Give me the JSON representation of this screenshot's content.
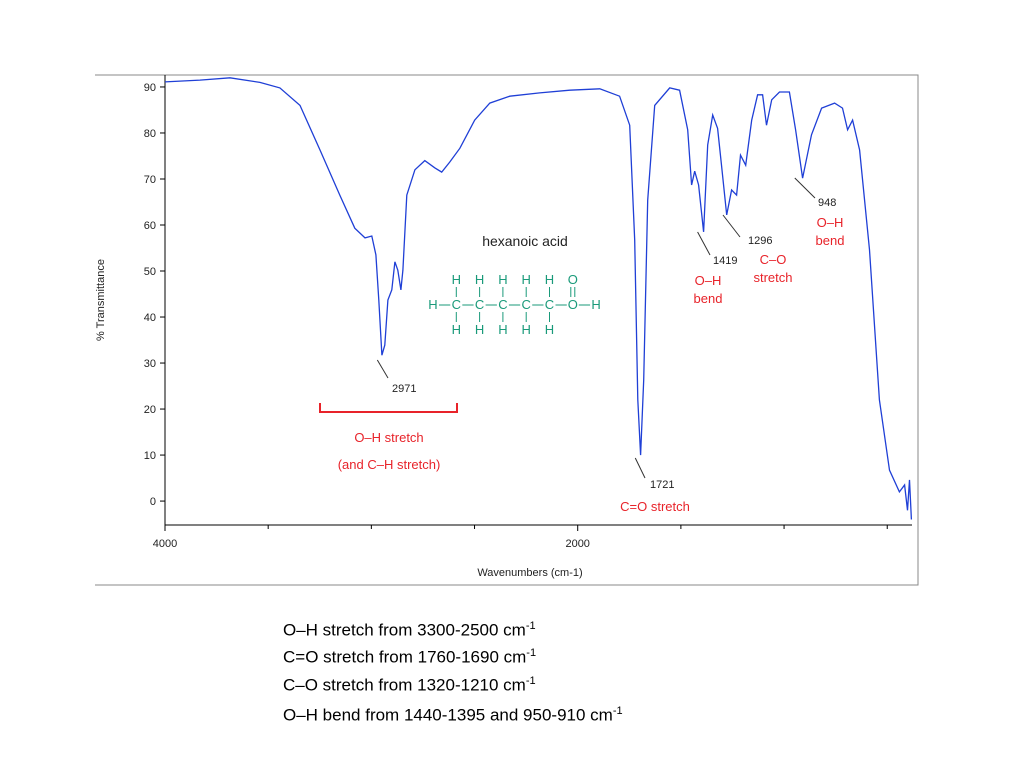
{
  "chart_data": {
    "type": "line",
    "ylabel": "% Transmittance",
    "xlabel": "Wavenumbers (cm-1)",
    "x": [
      4000,
      3831,
      3685,
      3540,
      3443,
      3346,
      3249,
      3153,
      3080,
      3031,
      2998,
      2978,
      2964,
      2949,
      2935,
      2920,
      2901,
      2886,
      2872,
      2857,
      2847,
      2828,
      2789,
      2741,
      2692,
      2659,
      2620,
      2571,
      2499,
      2426,
      2329,
      2184,
      2039,
      1893,
      1797,
      1748,
      1724,
      1709,
      1695,
      1680,
      1661,
      1627,
      1554,
      1506,
      1467,
      1448,
      1433,
      1414,
      1390,
      1370,
      1346,
      1322,
      1303,
      1278,
      1254,
      1230,
      1211,
      1186,
      1157,
      1128,
      1104,
      1085,
      1060,
      1022,
      974,
      944,
      910,
      867,
      818,
      755,
      717,
      692,
      668,
      634,
      586,
      538,
      489,
      441,
      416,
      402,
      392,
      383
    ],
    "values": [
      91.1,
      91.5,
      92,
      91,
      89.8,
      86,
      76.3,
      66.5,
      59.3,
      57.2,
      57.6,
      53.5,
      43.7,
      31.7,
      33.9,
      43.7,
      45.9,
      52,
      50.2,
      45.9,
      50.2,
      66.5,
      72,
      74,
      72.4,
      71.5,
      73.7,
      76.7,
      82.8,
      86.5,
      88,
      88.7,
      89.3,
      89.6,
      88,
      81.7,
      56.7,
      22,
      10,
      26.3,
      65.4,
      86,
      89.8,
      89.3,
      80.7,
      68.7,
      71.7,
      68.7,
      58.5,
      77.4,
      83.9,
      81,
      73,
      62.2,
      67.6,
      66.5,
      75.2,
      73,
      82.8,
      88.3,
      88.3,
      81.7,
      87.2,
      88.9,
      88.9,
      80.7,
      70.2,
      79.6,
      85.4,
      86.5,
      85.4,
      80.7,
      82.8,
      76.3,
      54.6,
      22,
      6.7,
      2,
      3.5,
      -2,
      4.6,
      -4
    ],
    "color": "#1f3fd6",
    "xlim": [
      4000,
      380
    ],
    "ylim": [
      -5.2,
      92.6
    ],
    "xticks": [
      4000,
      2000
    ],
    "minor_xticks": [
      3500,
      3000,
      2500,
      1500,
      1000,
      500
    ],
    "yticks": [
      0,
      10,
      20,
      30,
      40,
      50,
      60,
      70,
      80,
      90
    ],
    "annotations": [
      {
        "x": 2971
      },
      {
        "x": 1721,
        "text": [
          "C=O stretch"
        ]
      },
      {
        "x": 1419,
        "text": [
          "O–H",
          "bend"
        ]
      },
      {
        "x": 1296,
        "text": [
          "C–O",
          "stretch"
        ]
      },
      {
        "x": 948,
        "text": [
          "O–H",
          "bend"
        ]
      }
    ],
    "bracket_text": [
      "O–H stretch",
      "(and C–H stretch)"
    ],
    "molecule": {
      "name": "hexanoic acid",
      "top": [
        "H",
        "H",
        "H",
        "H",
        "H",
        "O"
      ],
      "middle": [
        "H",
        "C",
        "C",
        "C",
        "C",
        "C",
        "O",
        "H"
      ],
      "bottom": [
        "H",
        "H",
        "H",
        "H",
        "H"
      ]
    }
  },
  "notes": [
    {
      "text": "O–H stretch from 3300-2500 cm",
      "sup": "-1"
    },
    {
      "text": "C=O stretch from 1760-1690 cm",
      "sup": "-1"
    },
    {
      "text": "C–O stretch from 1320-1210 cm",
      "sup": "-1"
    },
    {
      "text": "O–H bend from 1440-1395 and 950-910 cm",
      "sup": "-1"
    }
  ]
}
